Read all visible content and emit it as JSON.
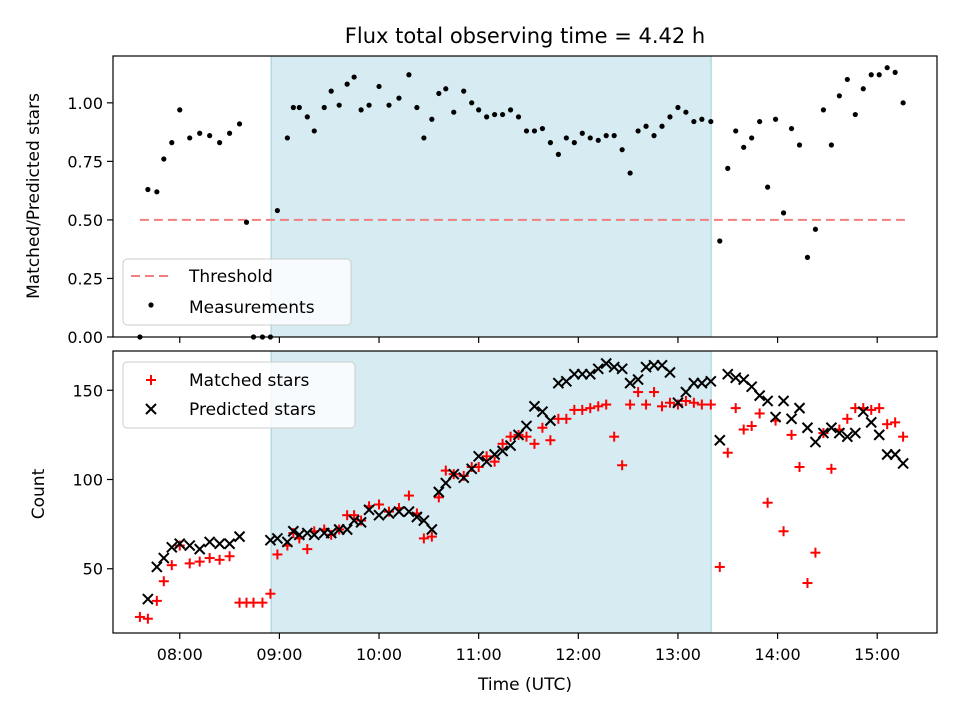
{
  "chart_data": [
    {
      "type": "scatter",
      "title": "Flux total observing time = 4.42 h",
      "ylabel": "Matched/Predicted stars",
      "xlabel": "",
      "x_range_hours": [
        7.33,
        15.6
      ],
      "ylim": [
        0.0,
        1.2
      ],
      "yticks": [
        "0.00",
        "0.25",
        "0.50",
        "0.75",
        "1.00"
      ],
      "observing_window": {
        "start": "08:55",
        "end": "13:20",
        "color": "#add8e6"
      },
      "threshold": {
        "name": "Threshold",
        "value": 0.5,
        "x_start": 7.6,
        "x_end": 15.3,
        "color": "#f08080"
      },
      "legend": {
        "placement": "lower-left",
        "entries": [
          "Threshold",
          "Measurements"
        ]
      },
      "series": [
        {
          "name": "Measurements",
          "color": "#000000",
          "marker": "dot",
          "x": [
            7.6,
            7.68,
            7.77,
            7.84,
            7.92,
            8.0,
            8.1,
            8.2,
            8.3,
            8.4,
            8.5,
            8.6,
            8.67,
            8.74,
            8.83,
            8.91,
            8.98,
            9.08,
            9.14,
            9.2,
            9.28,
            9.35,
            9.45,
            9.52,
            9.6,
            9.68,
            9.75,
            9.82,
            9.9,
            10.0,
            10.1,
            10.2,
            10.3,
            10.38,
            10.45,
            10.53,
            10.6,
            10.67,
            10.75,
            10.85,
            10.93,
            11.0,
            11.08,
            11.16,
            11.24,
            11.32,
            11.4,
            11.48,
            11.56,
            11.64,
            11.72,
            11.8,
            11.88,
            11.96,
            12.04,
            12.12,
            12.2,
            12.28,
            12.36,
            12.44,
            12.52,
            12.6,
            12.68,
            12.76,
            12.84,
            12.92,
            13.0,
            13.08,
            13.16,
            13.24,
            13.33,
            13.42,
            13.5,
            13.58,
            13.66,
            13.74,
            13.82,
            13.9,
            13.98,
            14.06,
            14.14,
            14.22,
            14.3,
            14.38,
            14.46,
            14.54,
            14.62,
            14.7,
            14.78,
            14.86,
            14.94,
            15.02,
            15.1,
            15.18,
            15.26
          ],
          "y": [
            0.0,
            0.63,
            0.62,
            0.76,
            0.83,
            0.97,
            0.85,
            0.87,
            0.86,
            0.83,
            0.87,
            0.91,
            0.49,
            0.0,
            0.0,
            0.0,
            0.54,
            0.85,
            0.98,
            0.98,
            0.94,
            0.88,
            0.98,
            1.05,
            0.99,
            1.08,
            1.11,
            0.97,
            0.99,
            1.07,
            0.99,
            1.02,
            1.12,
            0.98,
            0.85,
            0.93,
            1.04,
            1.06,
            0.96,
            1.05,
            1.0,
            0.97,
            0.94,
            0.95,
            0.95,
            0.97,
            0.94,
            0.88,
            0.88,
            0.89,
            0.83,
            0.78,
            0.85,
            0.83,
            0.87,
            0.85,
            0.84,
            0.86,
            0.86,
            0.8,
            0.7,
            0.88,
            0.9,
            0.86,
            0.9,
            0.94,
            0.98,
            0.96,
            0.92,
            0.93,
            0.92,
            0.41,
            0.72,
            0.88,
            0.81,
            0.85,
            0.92,
            0.64,
            0.93,
            0.53,
            0.89,
            0.82,
            0.34,
            0.46,
            0.97,
            0.82,
            1.03,
            1.1,
            0.95,
            1.06,
            1.12,
            1.12,
            1.15,
            1.13,
            1.0
          ]
        }
      ]
    },
    {
      "type": "scatter",
      "title": "",
      "xlabel": "Time (UTC)",
      "ylabel": "Count",
      "x_range_hours": [
        7.33,
        15.6
      ],
      "ylim": [
        14,
        172
      ],
      "yticks": [
        "50",
        "100",
        "150"
      ],
      "xticks": [
        "08:00",
        "09:00",
        "10:00",
        "11:00",
        "12:00",
        "13:00",
        "14:00",
        "15:00"
      ],
      "observing_window": {
        "start": "08:55",
        "end": "13:20",
        "color": "#add8e6"
      },
      "legend": {
        "placement": "upper-left",
        "entries": [
          "Matched stars",
          "Predicted stars"
        ]
      },
      "series": [
        {
          "name": "Matched stars",
          "color": "#ff0000",
          "marker": "plus",
          "x": [
            7.6,
            7.68,
            7.77,
            7.84,
            7.92,
            8.0,
            8.1,
            8.2,
            8.3,
            8.4,
            8.5,
            8.6,
            8.67,
            8.74,
            8.83,
            8.91,
            8.98,
            9.08,
            9.14,
            9.2,
            9.28,
            9.35,
            9.45,
            9.52,
            9.6,
            9.68,
            9.75,
            9.82,
            9.9,
            10.0,
            10.1,
            10.2,
            10.3,
            10.38,
            10.45,
            10.53,
            10.6,
            10.67,
            10.75,
            10.85,
            10.93,
            11.0,
            11.08,
            11.16,
            11.24,
            11.32,
            11.4,
            11.48,
            11.56,
            11.64,
            11.72,
            11.8,
            11.88,
            11.96,
            12.04,
            12.12,
            12.2,
            12.28,
            12.36,
            12.44,
            12.52,
            12.6,
            12.68,
            12.76,
            12.84,
            12.92,
            13.0,
            13.08,
            13.16,
            13.24,
            13.33,
            13.42,
            13.5,
            13.58,
            13.66,
            13.74,
            13.82,
            13.9,
            13.98,
            14.06,
            14.14,
            14.22,
            14.3,
            14.38,
            14.46,
            14.54,
            14.62,
            14.7,
            14.78,
            14.86,
            14.94,
            15.02,
            15.1,
            15.18,
            15.26
          ],
          "y": [
            23,
            22,
            32,
            43,
            52,
            63,
            53,
            54,
            56,
            55,
            57,
            31,
            31,
            31,
            31,
            36,
            58,
            63,
            70,
            67,
            61,
            71,
            72,
            69,
            72,
            80,
            80,
            77,
            85,
            86,
            82,
            84,
            91,
            81,
            67,
            68,
            90,
            105,
            103,
            102,
            107,
            107,
            113,
            110,
            120,
            124,
            125,
            124,
            120,
            129,
            122,
            134,
            134,
            139,
            139,
            140,
            141,
            142,
            124,
            108,
            142,
            149,
            142,
            149,
            141,
            143,
            142,
            144,
            143,
            142,
            142,
            51,
            115,
            140,
            128,
            130,
            137,
            87,
            133,
            71,
            125,
            107,
            42,
            59,
            126,
            106,
            128,
            134,
            140,
            140,
            139,
            140,
            131,
            132,
            124
          ]
        },
        {
          "name": "Predicted stars",
          "color": "#000000",
          "marker": "x",
          "x": [
            7.68,
            7.77,
            7.84,
            7.92,
            8.0,
            8.1,
            8.2,
            8.3,
            8.4,
            8.5,
            8.6,
            8.91,
            8.98,
            9.08,
            9.14,
            9.2,
            9.28,
            9.35,
            9.45,
            9.52,
            9.6,
            9.68,
            9.75,
            9.82,
            9.9,
            10.0,
            10.1,
            10.2,
            10.3,
            10.38,
            10.45,
            10.53,
            10.6,
            10.67,
            10.75,
            10.85,
            10.93,
            11.0,
            11.08,
            11.16,
            11.24,
            11.32,
            11.4,
            11.48,
            11.56,
            11.64,
            11.72,
            11.8,
            11.88,
            11.96,
            12.04,
            12.12,
            12.2,
            12.28,
            12.36,
            12.44,
            12.52,
            12.6,
            12.68,
            12.76,
            12.84,
            12.92,
            13.0,
            13.08,
            13.16,
            13.24,
            13.33,
            13.42,
            13.5,
            13.58,
            13.66,
            13.74,
            13.82,
            13.9,
            13.98,
            14.06,
            14.14,
            14.22,
            14.3,
            14.38,
            14.46,
            14.54,
            14.62,
            14.7,
            14.78,
            14.86,
            14.94,
            15.02,
            15.1,
            15.18,
            15.26
          ],
          "y": [
            33,
            51,
            56,
            62,
            64,
            63,
            61,
            65,
            64,
            64,
            68,
            66,
            67,
            65,
            71,
            69,
            70,
            69,
            70,
            70,
            72,
            72,
            77,
            76,
            83,
            80,
            81,
            82,
            82,
            79,
            77,
            72,
            93,
            98,
            103,
            101,
            106,
            113,
            110,
            114,
            116,
            119,
            125,
            130,
            141,
            138,
            133,
            154,
            155,
            159,
            159,
            159,
            162,
            165,
            163,
            162,
            154,
            156,
            163,
            164,
            164,
            160,
            143,
            149,
            154,
            154,
            155,
            122,
            159,
            157,
            156,
            152,
            147,
            144,
            135,
            144,
            134,
            140,
            129,
            121,
            126,
            129,
            126,
            124,
            126,
            138,
            132,
            125,
            114,
            114,
            109
          ]
        }
      ]
    }
  ]
}
